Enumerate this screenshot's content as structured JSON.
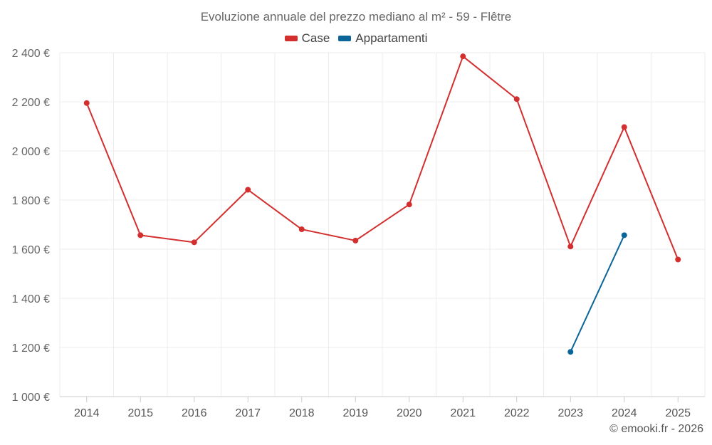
{
  "chart_data": {
    "type": "line",
    "title": "Evoluzione annuale del prezzo mediano al m² - 59 - Flêtre",
    "categories": [
      "2014",
      "2015",
      "2016",
      "2017",
      "2018",
      "2019",
      "2020",
      "2021",
      "2022",
      "2023",
      "2024",
      "2025"
    ],
    "ylim": [
      1000,
      2400
    ],
    "yticks": [
      1000,
      1200,
      1400,
      1600,
      1800,
      2000,
      2200,
      2400
    ],
    "ytick_labels": [
      "1 000 €",
      "1 200 €",
      "1 400 €",
      "1 600 €",
      "1 800 €",
      "2 000 €",
      "2 200 €",
      "2 400 €"
    ],
    "grid": true,
    "legend_position": "top-center",
    "series": [
      {
        "name": "Case",
        "color": "#d32f2f",
        "values": [
          2195,
          1657,
          1628,
          1842,
          1681,
          1635,
          1782,
          2385,
          2211,
          1611,
          2097,
          1558
        ]
      },
      {
        "name": "Appartamenti",
        "color": "#0b6599",
        "values": [
          null,
          null,
          null,
          null,
          null,
          null,
          null,
          null,
          null,
          1182,
          1657,
          null
        ]
      }
    ]
  },
  "credit": "© emooki.fr - 2026"
}
